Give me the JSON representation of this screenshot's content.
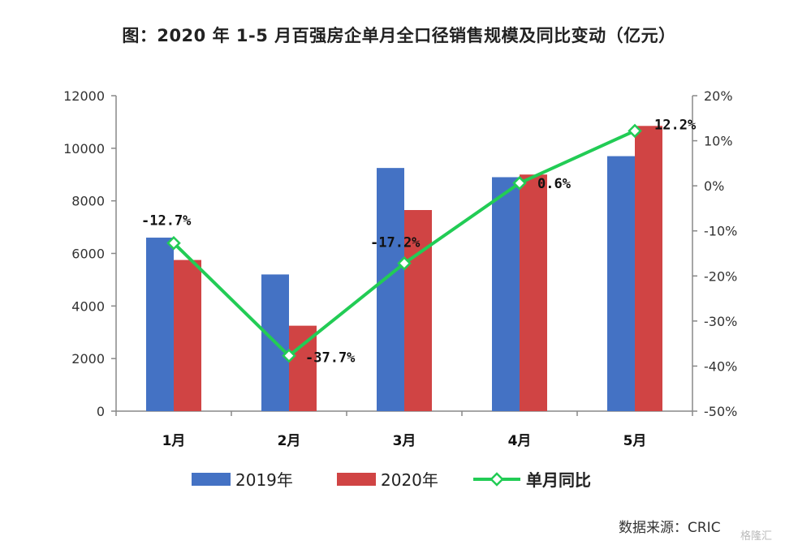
{
  "title": "图：2020 年 1-5 月百强房企单月全口径销售规模及同比变动（亿元）",
  "source": "数据来源：CRIC",
  "watermark": "格隆汇",
  "colors": {
    "series_2019": "#4472C4",
    "series_2020": "#D04444",
    "yoy_line": "#22CC55",
    "axis": "#888888"
  },
  "chart_data": {
    "type": "bar",
    "categories": [
      "1月",
      "2月",
      "3月",
      "4月",
      "5月"
    ],
    "series": [
      {
        "name": "2019年",
        "values": [
          6600,
          5200,
          9250,
          8900,
          9700
        ],
        "axis": "left"
      },
      {
        "name": "2020年",
        "values": [
          5750,
          3250,
          7650,
          9000,
          10850
        ],
        "axis": "left"
      },
      {
        "name": "单月同比",
        "type": "line",
        "values": [
          -12.7,
          -37.7,
          -17.2,
          0.6,
          12.2
        ],
        "axis": "right",
        "unit": "%",
        "labels": [
          "-12.7%",
          "-37.7%",
          "-17.2%",
          "0.6%",
          "12.2%"
        ]
      }
    ],
    "left_axis": {
      "min": 0,
      "max": 12000,
      "step": 2000,
      "ticks": [
        "0",
        "2000",
        "4000",
        "6000",
        "8000",
        "10000",
        "12000"
      ]
    },
    "right_axis": {
      "min": -50,
      "max": 20,
      "step": 10,
      "ticks": [
        "-50%",
        "-40%",
        "-30%",
        "-20%",
        "-10%",
        "0%",
        "10%",
        "20%"
      ]
    },
    "legend_position": "bottom",
    "grid": false
  }
}
